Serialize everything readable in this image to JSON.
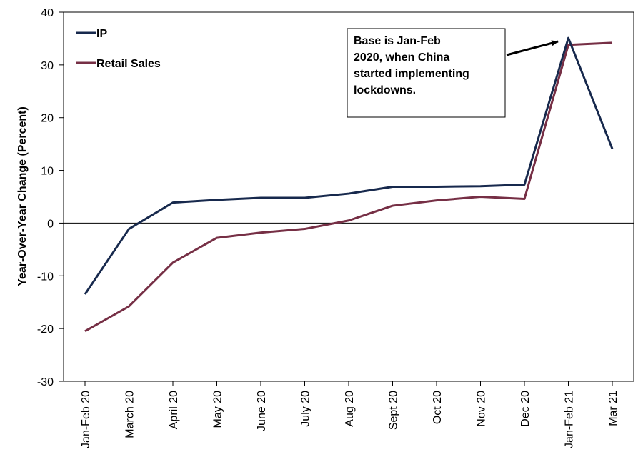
{
  "chart_data": {
    "type": "line",
    "title": "",
    "xlabel": "",
    "ylabel": "Year-Over-Year Change (Percent)",
    "ylim": [
      -30,
      40
    ],
    "yticks": [
      "40",
      "30",
      "20",
      "10",
      "0",
      "-10",
      "-20",
      "-30"
    ],
    "yticks_values": [
      40,
      30,
      20,
      10,
      0,
      -10,
      -20,
      -30
    ],
    "categories": [
      "Jan-Feb 20",
      "March 20",
      "April 20",
      "May 20",
      "June 20",
      "July 20",
      "Aug 20",
      "Sept 20",
      "Oct 20",
      "Nov 20",
      "Dec 20",
      "Jan-Feb 21",
      "Mar 21"
    ],
    "series": [
      {
        "name": "IP",
        "color": "#17294d",
        "values": [
          -13.5,
          -1.1,
          3.9,
          4.4,
          4.8,
          4.8,
          5.6,
          6.9,
          6.9,
          7.0,
          7.3,
          35.1,
          14.1
        ]
      },
      {
        "name": "Retail Sales",
        "color": "#762f45",
        "values": [
          -20.5,
          -15.8,
          -7.5,
          -2.8,
          -1.8,
          -1.1,
          0.5,
          3.3,
          4.3,
          5.0,
          4.6,
          33.8,
          34.2
        ]
      }
    ],
    "legend_position": "top-left",
    "grid": false,
    "annotation": {
      "text_lines": [
        "Base is Jan-Feb",
        "2020, when China",
        "started implementing",
        "lockdowns."
      ],
      "points_to": "Jan-Feb 21"
    }
  }
}
